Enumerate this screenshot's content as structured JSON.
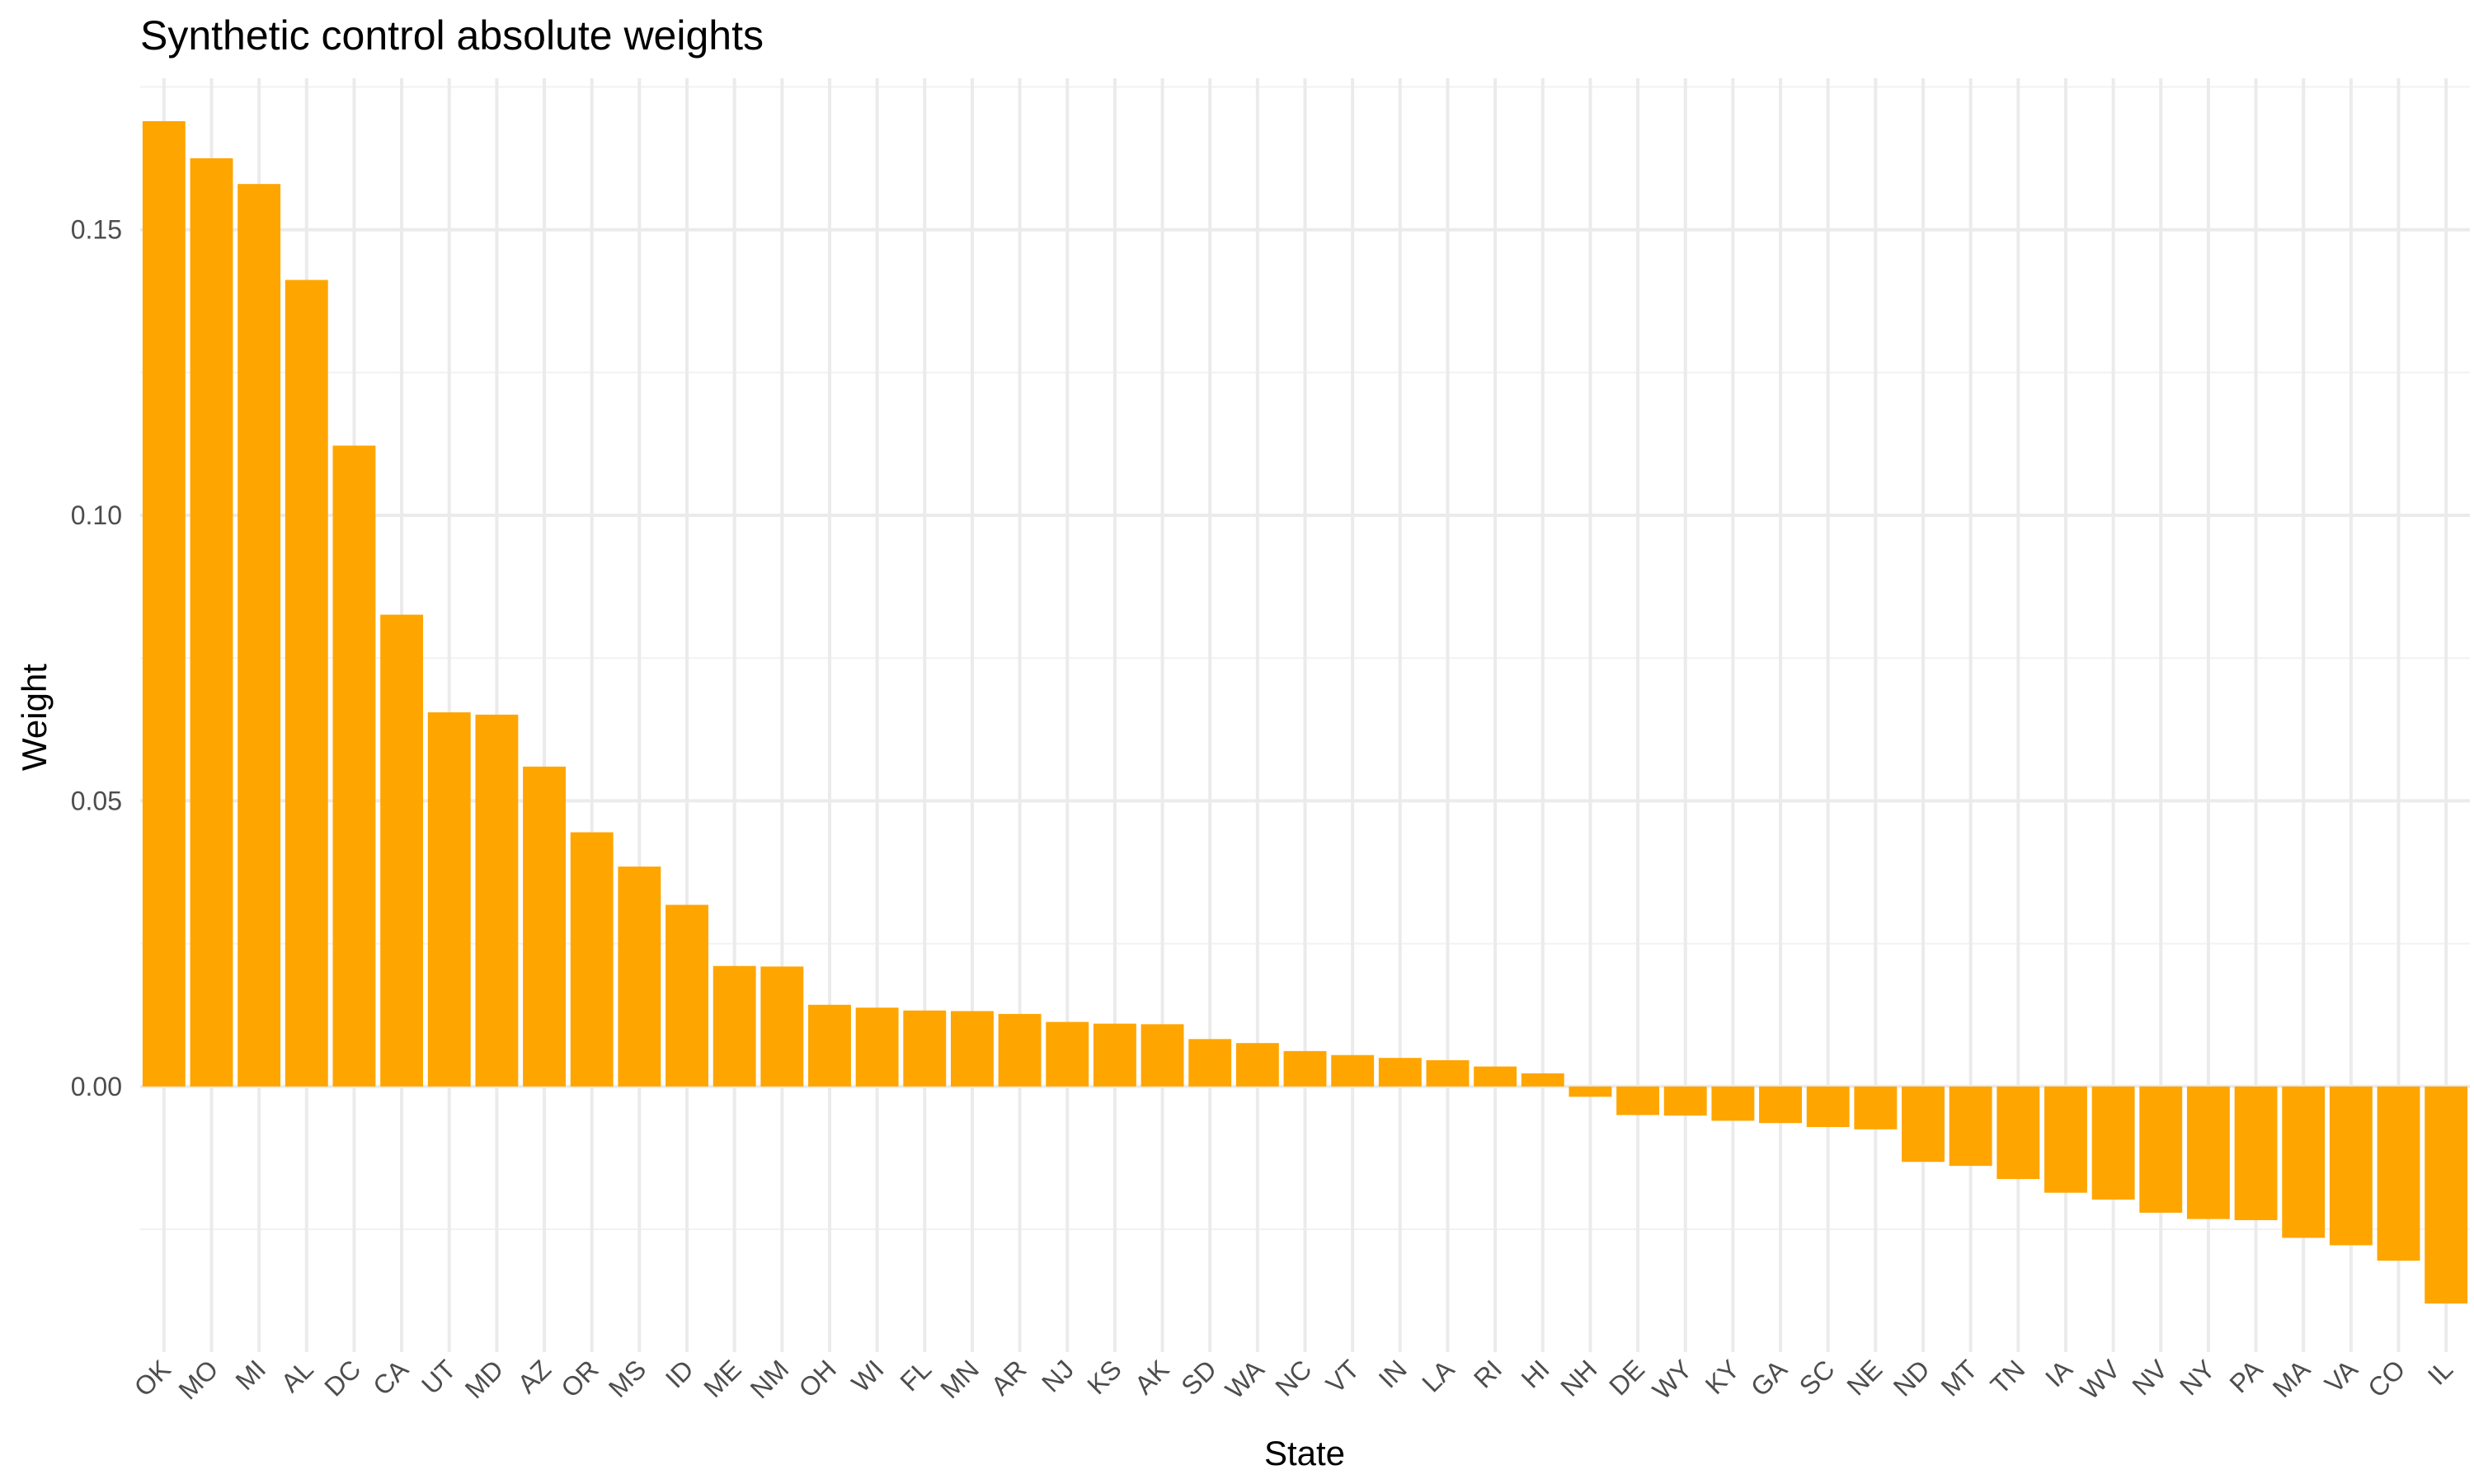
{
  "chart_data": {
    "type": "bar",
    "title": "Synthetic control absolute weights",
    "xlabel": "State",
    "ylabel": "Weight",
    "categories": [
      "OK",
      "MO",
      "MI",
      "AL",
      "DC",
      "CA",
      "UT",
      "MD",
      "AZ",
      "OR",
      "MS",
      "ID",
      "ME",
      "NM",
      "OH",
      "WI",
      "FL",
      "MN",
      "AR",
      "NJ",
      "KS",
      "AK",
      "SD",
      "WA",
      "NC",
      "VT",
      "IN",
      "LA",
      "RI",
      "HI",
      "NH",
      "DE",
      "WY",
      "KY",
      "GA",
      "SC",
      "NE",
      "ND",
      "MT",
      "TN",
      "IA",
      "WV",
      "NV",
      "NY",
      "PA",
      "MA",
      "VA",
      "CO",
      "IL"
    ],
    "values": [
      0.169,
      0.1625,
      0.158,
      0.1412,
      0.1122,
      0.0826,
      0.0655,
      0.0651,
      0.056,
      0.0445,
      0.0385,
      0.0318,
      0.0211,
      0.021,
      0.0143,
      0.0138,
      0.0133,
      0.0132,
      0.0127,
      0.0113,
      0.011,
      0.0109,
      0.0083,
      0.0076,
      0.0062,
      0.0055,
      0.005,
      0.0046,
      0.0035,
      0.0023,
      -0.0018,
      -0.005,
      -0.0051,
      -0.006,
      -0.0064,
      -0.0071,
      -0.0075,
      -0.0132,
      -0.0139,
      -0.0162,
      -0.0186,
      -0.0198,
      -0.0221,
      -0.0232,
      -0.0234,
      -0.0265,
      -0.0278,
      -0.0305,
      -0.038
    ],
    "yticks": [
      "0.00",
      "0.05",
      "0.10",
      "0.15"
    ],
    "ytick_values": [
      0,
      0.05,
      0.1,
      0.15
    ],
    "ylim": [
      -0.0465,
      0.1765
    ],
    "grid": true,
    "legend": "none",
    "bar_color": "#FFA500"
  }
}
